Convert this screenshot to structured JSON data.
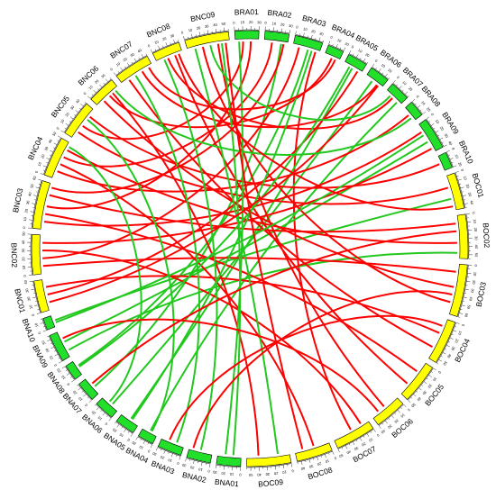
{
  "chart_data": {
    "type": "circos",
    "title": "",
    "genome_colors": {
      "BRA": "#22e02a",
      "BOC": "#ffff00",
      "BNA": "#22e02a",
      "BNC": "#ffff00"
    },
    "link_colors": {
      "primary": "#ff0000",
      "secondary": "#22c81e"
    },
    "chromosomes": [
      {
        "name": "BRA01",
        "size": 30,
        "genome": "BRA"
      },
      {
        "name": "BRA02",
        "size": 30,
        "genome": "BRA"
      },
      {
        "name": "BRA03",
        "size": 35,
        "genome": "BRA"
      },
      {
        "name": "BRA04",
        "size": 20,
        "genome": "BRA"
      },
      {
        "name": "BRA05",
        "size": 25,
        "genome": "BRA"
      },
      {
        "name": "BRA06",
        "size": 25,
        "genome": "BRA"
      },
      {
        "name": "BRA07",
        "size": 25,
        "genome": "BRA"
      },
      {
        "name": "BRA08",
        "size": 20,
        "genome": "BRA"
      },
      {
        "name": "BRA09",
        "size": 40,
        "genome": "BRA"
      },
      {
        "name": "BRA10",
        "size": 20,
        "genome": "BRA"
      },
      {
        "name": "BOC01",
        "size": 45,
        "genome": "BOC"
      },
      {
        "name": "BOC02",
        "size": 55,
        "genome": "BOC"
      },
      {
        "name": "BOC03",
        "size": 65,
        "genome": "BOC"
      },
      {
        "name": "BOC04",
        "size": 55,
        "genome": "BOC"
      },
      {
        "name": "BOC05",
        "size": 50,
        "genome": "BOC"
      },
      {
        "name": "BOC06",
        "size": 40,
        "genome": "BOC"
      },
      {
        "name": "BOC07",
        "size": 50,
        "genome": "BOC"
      },
      {
        "name": "BOC08",
        "size": 45,
        "genome": "BOC"
      },
      {
        "name": "BOC09",
        "size": 55,
        "genome": "BOC"
      },
      {
        "name": "BNA01",
        "size": 30,
        "genome": "BNA"
      },
      {
        "name": "BNA02",
        "size": 30,
        "genome": "BNA"
      },
      {
        "name": "BNA03",
        "size": 30,
        "genome": "BNA"
      },
      {
        "name": "BNA04",
        "size": 20,
        "genome": "BNA"
      },
      {
        "name": "BNA05",
        "size": 25,
        "genome": "BNA"
      },
      {
        "name": "BNA06",
        "size": 25,
        "genome": "BNA"
      },
      {
        "name": "BNA07",
        "size": 25,
        "genome": "BNA"
      },
      {
        "name": "BNA08",
        "size": 20,
        "genome": "BNA"
      },
      {
        "name": "BNA09",
        "size": 35,
        "genome": "BNA"
      },
      {
        "name": "BNA10",
        "size": 15,
        "genome": "BNA"
      },
      {
        "name": "BNC01",
        "size": 40,
        "genome": "BNC"
      },
      {
        "name": "BNC02",
        "size": 50,
        "genome": "BNC"
      },
      {
        "name": "BNC03",
        "size": 60,
        "genome": "BNC"
      },
      {
        "name": "BNC04",
        "size": 50,
        "genome": "BNC"
      },
      {
        "name": "BNC05",
        "size": 45,
        "genome": "BNC"
      },
      {
        "name": "BNC06",
        "size": 35,
        "genome": "BNC"
      },
      {
        "name": "BNC07",
        "size": 45,
        "genome": "BNC"
      },
      {
        "name": "BNC08",
        "size": 35,
        "genome": "BNC"
      },
      {
        "name": "BNC09",
        "size": 55,
        "genome": "BNC"
      }
    ],
    "tick_interval": 10,
    "links": [
      {
        "from": [
          "BRA01",
          10
        ],
        "to": [
          "BNC05",
          20
        ],
        "color": "primary"
      },
      {
        "from": [
          "BRA01",
          20
        ],
        "to": [
          "BNC03",
          30
        ],
        "color": "primary"
      },
      {
        "from": [
          "BRA02",
          10
        ],
        "to": [
          "BNC04",
          30
        ],
        "color": "primary"
      },
      {
        "from": [
          "BRA02",
          22
        ],
        "to": [
          "BNA07",
          10
        ],
        "color": "secondary"
      },
      {
        "from": [
          "BRA03",
          8
        ],
        "to": [
          "BNC02",
          20
        ],
        "color": "primary"
      },
      {
        "from": [
          "BRA03",
          20
        ],
        "to": [
          "BNA08",
          12
        ],
        "color": "secondary"
      },
      {
        "from": [
          "BRA03",
          30
        ],
        "to": [
          "BOC07",
          25
        ],
        "color": "primary"
      },
      {
        "from": [
          "BRA04",
          10
        ],
        "to": [
          "BNC06",
          20
        ],
        "color": "primary"
      },
      {
        "from": [
          "BRA05",
          12
        ],
        "to": [
          "BNA05",
          12
        ],
        "color": "secondary"
      },
      {
        "from": [
          "BRA05",
          20
        ],
        "to": [
          "BNC01",
          20
        ],
        "color": "primary"
      },
      {
        "from": [
          "BRA06",
          10
        ],
        "to": [
          "BNA06",
          10
        ],
        "color": "secondary"
      },
      {
        "from": [
          "BRA06",
          18
        ],
        "to": [
          "BNC07",
          30
        ],
        "color": "primary"
      },
      {
        "from": [
          "BRA07",
          12
        ],
        "to": [
          "BNC08",
          15
        ],
        "color": "primary"
      },
      {
        "from": [
          "BRA07",
          20
        ],
        "to": [
          "BNA04",
          10
        ],
        "color": "secondary"
      },
      {
        "from": [
          "BRA08",
          10
        ],
        "to": [
          "BNC04",
          10
        ],
        "color": "primary"
      },
      {
        "from": [
          "BRA09",
          10
        ],
        "to": [
          "BNC03",
          10
        ],
        "color": "primary"
      },
      {
        "from": [
          "BRA09",
          25
        ],
        "to": [
          "BNA09",
          20
        ],
        "color": "secondary"
      },
      {
        "from": [
          "BRA09",
          35
        ],
        "to": [
          "BNC02",
          40
        ],
        "color": "primary"
      },
      {
        "from": [
          "BRA10",
          10
        ],
        "to": [
          "BNC05",
          35
        ],
        "color": "primary"
      },
      {
        "from": [
          "BOC01",
          15
        ],
        "to": [
          "BNC05",
          10
        ],
        "color": "primary"
      },
      {
        "from": [
          "BOC01",
          30
        ],
        "to": [
          "BNA10",
          8
        ],
        "color": "secondary"
      },
      {
        "from": [
          "BOC02",
          10
        ],
        "to": [
          "BNC03",
          45
        ],
        "color": "primary"
      },
      {
        "from": [
          "BOC02",
          35
        ],
        "to": [
          "BNC04",
          40
        ],
        "color": "primary"
      },
      {
        "from": [
          "BOC02",
          48
        ],
        "to": [
          "BNA09",
          8
        ],
        "color": "secondary"
      },
      {
        "from": [
          "BOC03",
          10
        ],
        "to": [
          "BNC02",
          10
        ],
        "color": "primary"
      },
      {
        "from": [
          "BOC03",
          30
        ],
        "to": [
          "BNC06",
          10
        ],
        "color": "primary"
      },
      {
        "from": [
          "BOC03",
          50
        ],
        "to": [
          "BNC09",
          20
        ],
        "color": "primary"
      },
      {
        "from": [
          "BOC04",
          20
        ],
        "to": [
          "BNC01",
          30
        ],
        "color": "primary"
      },
      {
        "from": [
          "BOC04",
          40
        ],
        "to": [
          "BNC07",
          10
        ],
        "color": "primary"
      },
      {
        "from": [
          "BOC05",
          15
        ],
        "to": [
          "BNC03",
          20
        ],
        "color": "primary"
      },
      {
        "from": [
          "BOC05",
          35
        ],
        "to": [
          "BNC08",
          25
        ],
        "color": "primary"
      },
      {
        "from": [
          "BOC06",
          20
        ],
        "to": [
          "BNC09",
          40
        ],
        "color": "primary"
      },
      {
        "from": [
          "BOC07",
          10
        ],
        "to": [
          "BNC02",
          30
        ],
        "color": "primary"
      },
      {
        "from": [
          "BOC08",
          20
        ],
        "to": [
          "BNC04",
          20
        ],
        "color": "primary"
      },
      {
        "from": [
          "BOC09",
          15
        ],
        "to": [
          "BNC09",
          10
        ],
        "color": "secondary"
      },
      {
        "from": [
          "BOC09",
          40
        ],
        "to": [
          "BNC06",
          25
        ],
        "color": "primary"
      },
      {
        "from": [
          "BNA01",
          10
        ],
        "to": [
          "BNC09",
          45
        ],
        "color": "secondary"
      },
      {
        "from": [
          "BNA01",
          20
        ],
        "to": [
          "BRA01",
          5
        ],
        "color": "secondary"
      },
      {
        "from": [
          "BNA02",
          15
        ],
        "to": [
          "BNC08",
          10
        ],
        "color": "secondary"
      },
      {
        "from": [
          "BNA02",
          25
        ],
        "to": [
          "BOC03",
          40
        ],
        "color": "primary"
      },
      {
        "from": [
          "BNA03",
          10
        ],
        "to": [
          "BNC07",
          20
        ],
        "color": "secondary"
      },
      {
        "from": [
          "BNA03",
          20
        ],
        "to": [
          "BOC04",
          10
        ],
        "color": "primary"
      },
      {
        "from": [
          "BNA04",
          8
        ],
        "to": [
          "BNC05",
          30
        ],
        "color": "secondary"
      },
      {
        "from": [
          "BNA05",
          10
        ],
        "to": [
          "BRA03",
          25
        ],
        "color": "secondary"
      },
      {
        "from": [
          "BNA06",
          15
        ],
        "to": [
          "BNC04",
          45
        ],
        "color": "secondary"
      },
      {
        "from": [
          "BNA07",
          15
        ],
        "to": [
          "BOC02",
          20
        ],
        "color": "primary"
      },
      {
        "from": [
          "BNA08",
          10
        ],
        "to": [
          "BRA05",
          8
        ],
        "color": "secondary"
      },
      {
        "from": [
          "BNA09",
          25
        ],
        "to": [
          "BOC06",
          30
        ],
        "color": "primary"
      },
      {
        "from": [
          "BNA10",
          5
        ],
        "to": [
          "BRA09",
          15
        ],
        "color": "secondary"
      },
      {
        "from": [
          "BNC01",
          10
        ],
        "to": [
          "BRA06",
          20
        ],
        "color": "primary"
      },
      {
        "from": [
          "BNC03",
          55
        ],
        "to": [
          "BRA02",
          25
        ],
        "color": "primary"
      },
      {
        "from": [
          "BNC06",
          30
        ],
        "to": [
          "BRA08",
          15
        ],
        "color": "secondary"
      },
      {
        "from": [
          "BNC07",
          40
        ],
        "to": [
          "BRA04",
          15
        ],
        "color": "primary"
      },
      {
        "from": [
          "BNC08",
          30
        ],
        "to": [
          "BOC01",
          40
        ],
        "color": "primary"
      },
      {
        "from": [
          "BNC09",
          30
        ],
        "to": [
          "BRA07",
          8
        ],
        "color": "secondary"
      },
      {
        "from": [
          "BNC09",
          50
        ],
        "to": [
          "BOC08",
          35
        ],
        "color": "primary"
      }
    ]
  }
}
